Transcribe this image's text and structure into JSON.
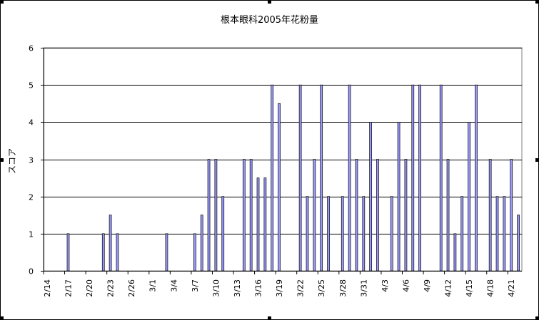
{
  "chart_data": {
    "type": "bar",
    "title": "根本眼科2005年花粉量",
    "ylabel": "スコア",
    "xlabel": "",
    "ylim": [
      0,
      6
    ],
    "yticks": [
      0,
      1,
      2,
      3,
      4,
      5,
      6
    ],
    "grid": true,
    "legend": "none",
    "bar_color": "#9999ff",
    "categories": [
      "2/14",
      "2/15",
      "2/16",
      "2/17",
      "2/18",
      "2/19",
      "2/20",
      "2/21",
      "2/22",
      "2/23",
      "2/24",
      "2/25",
      "2/26",
      "2/27",
      "2/28",
      "3/1",
      "3/2",
      "3/3",
      "3/4",
      "3/5",
      "3/6",
      "3/7",
      "3/8",
      "3/9",
      "3/10",
      "3/11",
      "3/12",
      "3/13",
      "3/14",
      "3/15",
      "3/16",
      "3/17",
      "3/18",
      "3/19",
      "3/20",
      "3/21",
      "3/22",
      "3/23",
      "3/24",
      "3/25",
      "3/26",
      "3/27",
      "3/28",
      "3/29",
      "3/30",
      "3/31",
      "4/1",
      "4/2",
      "4/3",
      "4/4",
      "4/5",
      "4/6",
      "4/7",
      "4/8",
      "4/9",
      "4/10",
      "4/11",
      "4/12",
      "4/13",
      "4/14",
      "4/15",
      "4/16",
      "4/17",
      "4/18",
      "4/19",
      "4/20",
      "4/21",
      "4/22"
    ],
    "tick_labels": [
      "2/14",
      "2/17",
      "2/20",
      "2/23",
      "2/26",
      "3/1",
      "3/4",
      "3/7",
      "3/10",
      "3/13",
      "3/16",
      "3/19",
      "3/22",
      "3/25",
      "3/28",
      "3/31",
      "4/3",
      "4/6",
      "4/9",
      "4/12",
      "4/15",
      "4/18",
      "4/21"
    ],
    "values": [
      0,
      0,
      0,
      1,
      0,
      0,
      0,
      0,
      1,
      1.5,
      1,
      0,
      0,
      0,
      0,
      0,
      0,
      1,
      0,
      0,
      0,
      1,
      1.5,
      3,
      3,
      2,
      0,
      0,
      3,
      3,
      2.5,
      2.5,
      5,
      4.5,
      0,
      0,
      5,
      2,
      3,
      5,
      2,
      0,
      2,
      5,
      3,
      2,
      4,
      3,
      0,
      2,
      4,
      3,
      5,
      5,
      0,
      0,
      5,
      3,
      1,
      2,
      4,
      5,
      0,
      3,
      2,
      2,
      3,
      1.5
    ]
  }
}
